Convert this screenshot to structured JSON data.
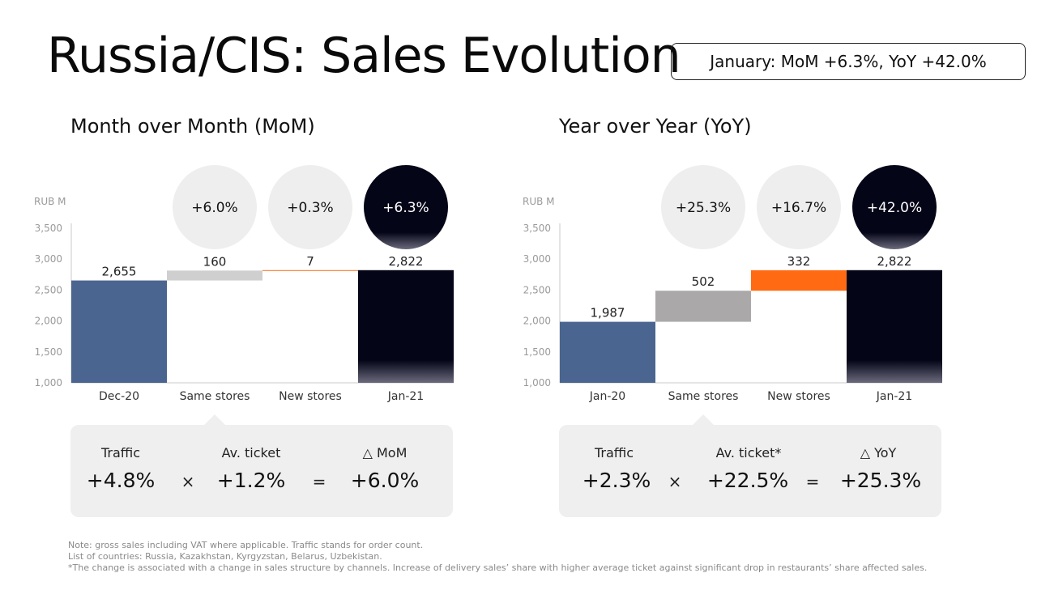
{
  "title": "Russia/CIS: Sales Evolution",
  "summary": "January: MoM +6.3%, YoY +42.0%",
  "colors": {
    "blue": "#4a658f",
    "navy": "#050518",
    "light_gray": "#cfcfcf",
    "mid_gray": "#aaa8a8",
    "orange": "#ff6a13",
    "bubble": "#eeeeee",
    "axis": "#c8c8c8",
    "tick": "#9a9a9a"
  },
  "mom": {
    "title": "Month over Month (MoM)",
    "decomposition": {
      "labels": [
        "Traffic",
        "Av. ticket",
        "△ MoM"
      ],
      "values": [
        "+4.8%",
        "+1.2%",
        "+6.0%"
      ],
      "ops": [
        "×",
        "="
      ]
    }
  },
  "yoy": {
    "title": "Year over Year (YoY)",
    "decomposition": {
      "labels": [
        "Traffic",
        "Av. ticket*",
        "△ YoY"
      ],
      "values": [
        "+2.3%",
        "+22.5%",
        "+25.3%"
      ],
      "ops": [
        "×",
        "="
      ]
    }
  },
  "chart_data": [
    {
      "type": "bar",
      "subtype": "waterfall",
      "unit_label": "RUB M",
      "ylim": [
        1000,
        3500
      ],
      "yticks": [
        "1,000",
        "1,500",
        "2,000",
        "2,500",
        "3,000",
        "3,500"
      ],
      "categories": [
        "Dec-20",
        "Same stores",
        "New stores",
        "Jan-21"
      ],
      "values": [
        2655,
        160,
        7,
        2822
      ],
      "value_labels": [
        "2,655",
        "160",
        "7",
        "2,822"
      ],
      "bar_roles": [
        "total",
        "delta",
        "delta",
        "total"
      ],
      "bar_colors": [
        "blue",
        "light_gray",
        "orange",
        "navy"
      ],
      "bubbles": [
        "",
        "+6.0%",
        "+0.3%",
        "+6.3%"
      ],
      "bubble_dark": [
        false,
        false,
        false,
        true
      ]
    },
    {
      "type": "bar",
      "subtype": "waterfall",
      "unit_label": "RUB M",
      "ylim": [
        1000,
        3500
      ],
      "yticks": [
        "1,000",
        "1,500",
        "2,000",
        "2,500",
        "3,000",
        "3,500"
      ],
      "categories": [
        "Jan-20",
        "Same stores",
        "New stores",
        "Jan-21"
      ],
      "values": [
        1987,
        502,
        332,
        2822
      ],
      "value_labels": [
        "1,987",
        "502",
        "332",
        "2,822"
      ],
      "bar_roles": [
        "total",
        "delta",
        "delta",
        "total"
      ],
      "bar_colors": [
        "blue",
        "mid_gray",
        "orange",
        "navy"
      ],
      "bubbles": [
        "",
        "+25.3%",
        "+16.7%",
        "+42.0%"
      ],
      "bubble_dark": [
        false,
        false,
        false,
        true
      ]
    }
  ],
  "footnotes": [
    "Note: gross sales including VAT where applicable. Traffic stands for order count.",
    "List of countries: Russia, Kazakhstan, Kyrgyzstan, Belarus, Uzbekistan.",
    "*The change is associated with a change in sales structure by channels. Increase of delivery sales’ share with higher average ticket against significant drop in restaurants’ share affected sales."
  ]
}
